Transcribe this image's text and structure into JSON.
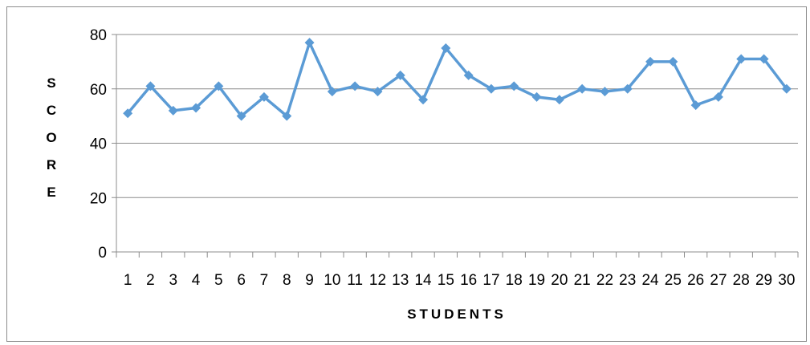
{
  "chart_data": {
    "type": "line",
    "title": "",
    "xlabel": "STUDENTS",
    "ylabel": "SCORE",
    "categories": [
      "1",
      "2",
      "3",
      "4",
      "5",
      "6",
      "7",
      "8",
      "9",
      "10",
      "11",
      "12",
      "13",
      "14",
      "15",
      "16",
      "17",
      "18",
      "19",
      "20",
      "21",
      "22",
      "23",
      "24",
      "25",
      "26",
      "27",
      "28",
      "29",
      "30"
    ],
    "series": [
      {
        "values": [
          51,
          61,
          52,
          53,
          61,
          50,
          57,
          50,
          77,
          59,
          61,
          59,
          65,
          56,
          75,
          65,
          60,
          61,
          57,
          56,
          60,
          59,
          60,
          70,
          70,
          54,
          57,
          71,
          71,
          60
        ]
      }
    ],
    "ylim": [
      0,
      80
    ],
    "yticks": [
      0,
      20,
      40,
      60,
      80
    ],
    "grid": true,
    "legend": "none",
    "colors": {
      "line": "#5b9bd5",
      "marker": "#5b9bd5",
      "grid": "#8c8c8c",
      "axis": "#8c8c8c",
      "text": "#000000"
    }
  }
}
